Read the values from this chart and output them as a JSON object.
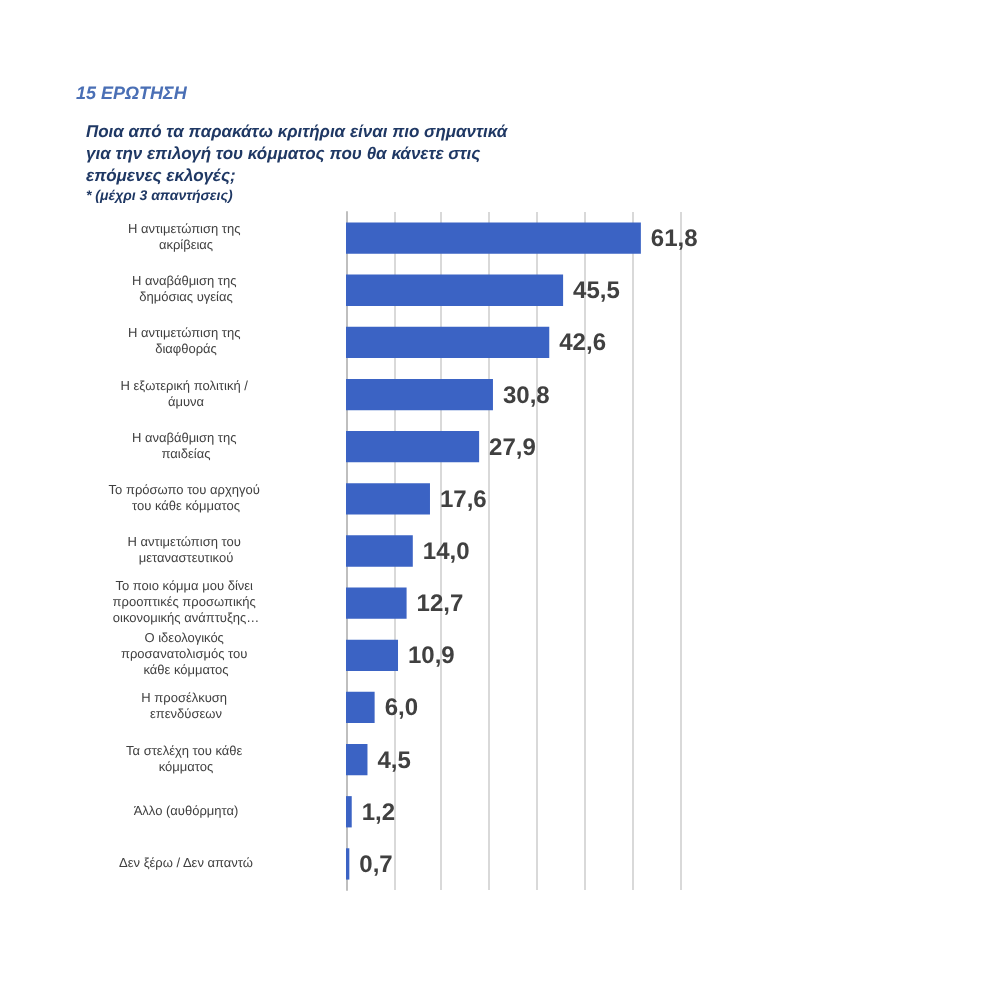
{
  "chart_data": {
    "type": "bar",
    "orientation": "horizontal",
    "title": "Ποια από τα παρακάτω κριτήρια είναι πιο σημαντικά για την επιλογή του κόμματος που θα κάνετε στις επόμενες εκλογές;",
    "subtitle": "* (μέχρι 3 απαντήσεις)",
    "annotations": [
      "15 ΕΡΩΤΗΣΗ"
    ],
    "categories": [
      "Η αντιμετώπιση της ακρίβειας",
      "Η αναβάθμιση της δημόσιας υγείας",
      "Η αντιμετώπιση της διαφθοράς",
      "Η εξωτερική πολιτική / άμυνα",
      "Η αναβάθμιση της παιδείας",
      "Το πρόσωπο του αρχηγού του κάθε κόμματος",
      "Η αντιμετώπιση του μεταναστευτικού",
      "Το ποιο κόμμα μου δίνει προοπτικές προσωπικής οικονομικής ανάπτυξης…",
      "Ο ιδεολογικός προσανατολισμός του κάθε κόμματος",
      "Η προσέλκυση επενδύσεων",
      "Τα στελέχη του κάθε κόμματος",
      "Άλλο (αυθόρμητα)",
      "Δεν ξέρω / Δεν απαντώ"
    ],
    "values": [
      61.8,
      45.5,
      42.6,
      30.8,
      27.9,
      17.6,
      14.0,
      12.7,
      10.9,
      6.0,
      4.5,
      1.2,
      0.7
    ],
    "value_labels": [
      "61,8",
      "45,5",
      "42,6",
      "30,8",
      "27,9",
      "17,6",
      "14,0",
      "12,7",
      "10,9",
      "6,0",
      "4,5",
      "1,2",
      "0,7"
    ],
    "color": "#3b63c4",
    "xlim": [
      0,
      70
    ],
    "xticks": [
      {
        "value": 0,
        "label": null
      },
      {
        "value": 10,
        "label": null
      },
      {
        "value": 20,
        "label": null
      },
      {
        "value": 30,
        "label": null
      },
      {
        "value": 40,
        "label": null
      },
      {
        "value": 50,
        "label": null
      },
      {
        "value": 60,
        "label": null
      },
      {
        "value": 70,
        "label": null
      }
    ],
    "grid": "x",
    "tick_labels": "y"
  }
}
